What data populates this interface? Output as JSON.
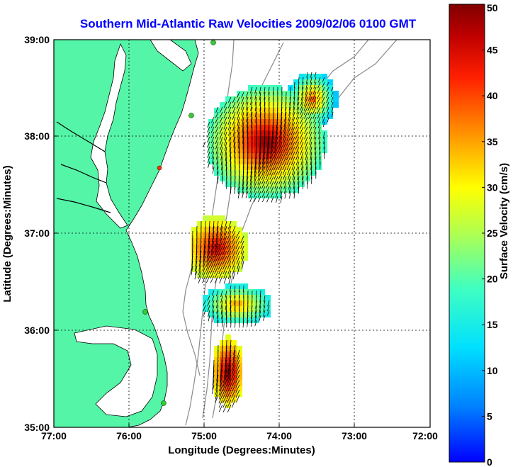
{
  "title": "Southern Mid-Atlantic Raw Velocities 2009/02/06 0100 GMT",
  "x_axis": {
    "label": "Longitude (Degrees:Minutes)",
    "ticks": [
      "77:00",
      "76:00",
      "75:00",
      "74:00",
      "73:00",
      "72:00"
    ]
  },
  "y_axis": {
    "label": "Latitude (Degrees:Minutes)",
    "ticks": [
      "39:00",
      "38:00",
      "37:00",
      "36:00",
      "35:00"
    ]
  },
  "colorbar": {
    "label": "Surface Velocity (cm/s)",
    "ticks": [
      "50",
      "45",
      "40",
      "35",
      "30",
      "25",
      "20",
      "15",
      "10",
      "5",
      "0"
    ],
    "min": 0,
    "max": 50
  },
  "colors": {
    "land": "#55f5a8",
    "title": "#0000ff",
    "contour": "#8a8a8a",
    "station": "#33cc33",
    "station_alt": "#ff3300"
  }
}
